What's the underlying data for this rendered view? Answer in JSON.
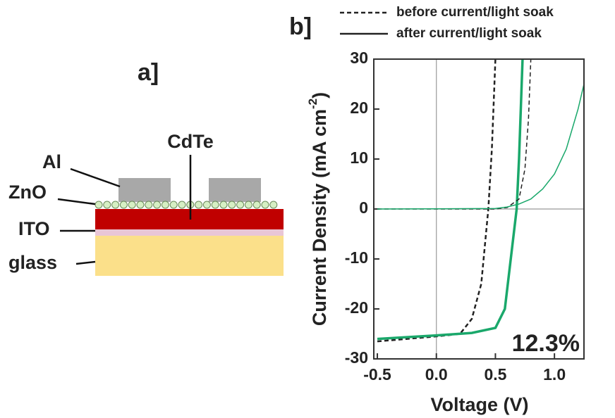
{
  "diagram": {
    "panel_label": "a]",
    "layers": {
      "top": "CdTe",
      "contact": "Al",
      "buffer": "ZnO",
      "electrode": "ITO",
      "substrate": "glass"
    }
  },
  "chart_data": {
    "type": "line",
    "panel_label": "b]",
    "x_label": "Voltage (V)",
    "y_label": "Current Density (mA cm",
    "y_label_sup": "-2",
    "y_label_end": ")",
    "annotation": "12.3%",
    "annotation_color": "#1aa86b",
    "xlim": [
      -0.53,
      1.25
    ],
    "ylim": [
      -30,
      30
    ],
    "xticks": [
      -0.5,
      {
        "value": 0,
        "label": "0.0"
      },
      0.5,
      {
        "value": 1,
        "label": "1.0"
      }
    ],
    "yticks": [
      -30,
      -20,
      -10,
      0,
      10,
      20,
      30
    ],
    "zero_lines": true,
    "legend_line_color": "#222",
    "legend_position": "top",
    "series": [
      {
        "name": "before current/light soak",
        "color": "#222",
        "dash": true,
        "width": 2.5,
        "x": [
          -0.5,
          -0.25,
          0,
          0.2,
          0.3,
          0.38,
          0.42,
          0.44,
          0.47,
          0.5
        ],
        "values": [
          -26.5,
          -26,
          -25.5,
          -25,
          -22,
          -15,
          -5,
          0,
          12,
          30
        ]
      },
      {
        "name": "after current/light soak",
        "color": "#1aa86b",
        "dash": false,
        "width": 3.5,
        "x": [
          -0.5,
          0,
          0.3,
          0.5,
          0.58,
          0.62,
          0.66,
          0.68,
          0.7,
          0.73
        ],
        "values": [
          -26,
          -25.3,
          -24.8,
          -23.8,
          -20,
          -12,
          -4,
          0,
          10,
          30
        ]
      },
      {
        "color": "#222",
        "dash": true,
        "width": 1.5,
        "x": [
          -0.5,
          0.5,
          0.6,
          0.7,
          0.75,
          0.78,
          0.8
        ],
        "values": [
          0,
          0,
          0.3,
          2,
          8,
          18,
          30
        ]
      },
      {
        "color": "#1aa86b",
        "dash": false,
        "width": 1.5,
        "x": [
          -0.5,
          0.5,
          0.6,
          0.7,
          0.8,
          0.9,
          1.0,
          1.1,
          1.2,
          1.25
        ],
        "values": [
          0,
          0.1,
          0.4,
          1,
          2,
          4,
          7,
          12,
          20,
          25
        ]
      }
    ]
  }
}
